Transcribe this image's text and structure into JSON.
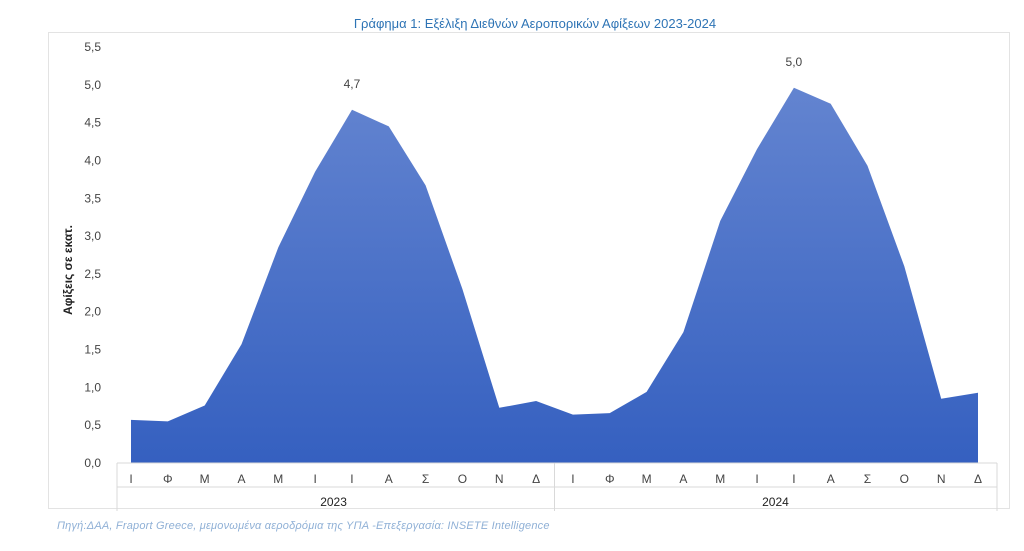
{
  "chart_data": {
    "type": "area",
    "title": "Γράφημα 1: Εξέλιξη Διεθνών Αεροπορικών Αφίξεων 2023-2024",
    "ylabel": "Αφίξεις σε εκατ.",
    "xlabel": "",
    "ylim": [
      0,
      5.5
    ],
    "yticks": [
      "0,0",
      "0,5",
      "1,0",
      "1,5",
      "2,0",
      "2,5",
      "3,0",
      "3,5",
      "4,0",
      "4,5",
      "5,0",
      "5,5"
    ],
    "groups": [
      {
        "year": "2023",
        "months": [
          "Ι",
          "Φ",
          "Μ",
          "Α",
          "Μ",
          "Ι",
          "Ι",
          "Α",
          "Σ",
          "Ο",
          "Ν",
          "Δ"
        ]
      },
      {
        "year": "2024",
        "months": [
          "Ι",
          "Φ",
          "Μ",
          "Α",
          "Μ",
          "Ι",
          "Ι",
          "Α",
          "Σ",
          "Ο",
          "Ν",
          "Δ"
        ]
      }
    ],
    "values": [
      0.57,
      0.55,
      0.76,
      1.57,
      2.85,
      3.85,
      4.67,
      4.45,
      3.67,
      2.3,
      0.73,
      0.82,
      0.64,
      0.66,
      0.94,
      1.73,
      3.2,
      4.15,
      4.96,
      4.75,
      3.93,
      2.6,
      0.85,
      0.93
    ],
    "annotations": [
      {
        "index": 6,
        "text": "4,7"
      },
      {
        "index": 18,
        "text": "5,0"
      }
    ],
    "fill_top": "#6384d0",
    "fill_bottom": "#3560c0",
    "grid": false
  },
  "source": "Πηγή:ΔΑΑ, Fraport Greece, μεμονωμένα αεροδρόμια της ΥΠΑ -Επεξεργασία: INSETE Intelligence"
}
